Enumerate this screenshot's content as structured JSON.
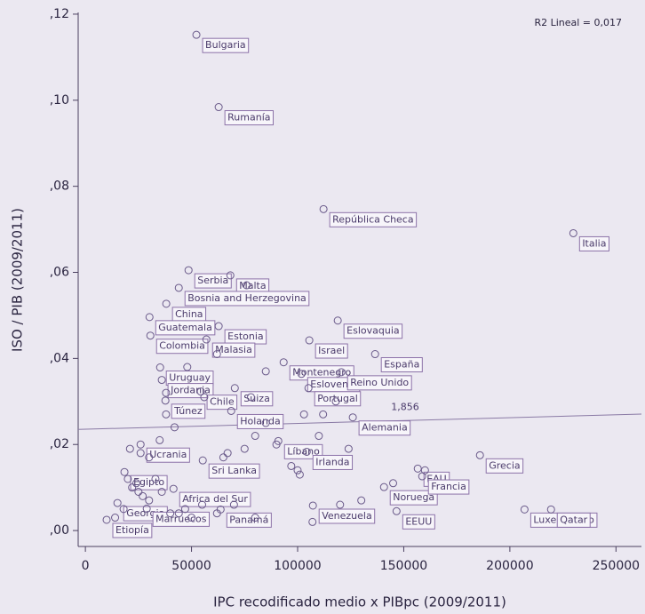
{
  "chart_data": {
    "type": "scatter",
    "annotation": "R2 Lineal = 0,017",
    "fit_label": "1,856",
    "xlabel": "IPC recodificado medio x PIBpc (2009/2011)",
    "ylabel": "ISO / PIB (2009/2011)",
    "xlim": [
      -3400,
      262000
    ],
    "ylim": [
      -0.0037,
      0.1204
    ],
    "xticks": [
      0,
      50000,
      100000,
      150000,
      200000,
      250000
    ],
    "yticks": [
      {
        "value": 0,
        "label": ",00"
      },
      {
        "value": 0.02,
        "label": ",02"
      },
      {
        "value": 0.04,
        "label": ",04"
      },
      {
        "value": 0.06,
        "label": ",06"
      },
      {
        "value": 0.08,
        "label": ",08"
      },
      {
        "value": 0.1,
        "label": ",10"
      },
      {
        "value": 0.12,
        "label": ",12"
      }
    ],
    "color": "#6a5a8a",
    "labels": [
      "Bulgaria",
      "Rumanía",
      "República Checa",
      "Italia",
      "Serbia",
      "Malta",
      "Bosnia and Herzegovina",
      "China",
      "Eslovaquia",
      "Israel",
      "Guatemala",
      "Estonia",
      "Colombia",
      "Malasia",
      "España",
      "Montenegro",
      "Eslovenia",
      "Uruguay",
      "Jordania",
      "Chile",
      "Suiza",
      "Portugal",
      "Reino Unido",
      "Túnez",
      "Holanda",
      "Alemania",
      "EAU",
      "Ucrania",
      "Sri Lanka",
      "Líbano",
      "Irlanda",
      "Grecia",
      "Egipto",
      "Noruega",
      "Africa del Sur",
      "Francia",
      "Georgia",
      "EEUU",
      "Luxemburgo",
      "Qatar",
      "Venezuela",
      "Marruecos",
      "Panamá",
      "Etiopía",
      null,
      null,
      null,
      null,
      null,
      null,
      null,
      null,
      null,
      null,
      null,
      null,
      null,
      null,
      null,
      null,
      null,
      null,
      null,
      null,
      null,
      null,
      null,
      null,
      null,
      null,
      null,
      null,
      null,
      null,
      null,
      null,
      null,
      null,
      null,
      null,
      null,
      null,
      null,
      null,
      null,
      null,
      null,
      null,
      null,
      null,
      null,
      null,
      null,
      null
    ],
    "x": [
      52300,
      62800,
      112200,
      229900,
      48600,
      68300,
      44000,
      38100,
      118900,
      105500,
      30200,
      62800,
      30600,
      57000,
      136500,
      93400,
      101800,
      35200,
      36000,
      54400,
      70400,
      105100,
      120600,
      37700,
      68700,
      126000,
      156600,
      26000,
      55300,
      90900,
      104300,
      185900,
      18400,
      140700,
      41500,
      158700,
      15100,
      146600,
      206900,
      219400,
      107200,
      28900,
      63700,
      10000,
      20000,
      22000,
      24000,
      25000,
      27000,
      30000,
      33000,
      36000,
      40000,
      44000,
      47000,
      50000,
      55000,
      62000,
      70000,
      80000,
      21000,
      26000,
      30000,
      35000,
      42000,
      38000,
      65000,
      67000,
      75000,
      80000,
      85000,
      90000,
      97000,
      100000,
      101000,
      103000,
      110000,
      118000,
      124000,
      130000,
      145000,
      160000,
      38000,
      48000,
      56000,
      62000,
      78000,
      85000,
      76000,
      112000,
      18000,
      14000,
      120000,
      107000
    ],
    "values": [
      0.1152,
      0.0984,
      0.0747,
      0.0691,
      0.0605,
      0.0593,
      0.0564,
      0.0527,
      0.0488,
      0.0442,
      0.0496,
      0.0475,
      0.0453,
      0.0444,
      0.041,
      0.0391,
      0.0364,
      0.0379,
      0.035,
      0.0323,
      0.0331,
      0.0331,
      0.0368,
      0.0302,
      0.0278,
      0.0263,
      0.0144,
      0.02,
      0.0163,
      0.0208,
      0.0183,
      0.0175,
      0.0136,
      0.0101,
      0.0097,
      0.0126,
      0.0064,
      0.0045,
      0.0049,
      0.0049,
      0.0058,
      0.0051,
      0.0049,
      0.0025,
      0.012,
      0.01,
      0.011,
      0.009,
      0.008,
      0.007,
      0.012,
      0.009,
      0.004,
      0.004,
      0.005,
      0.003,
      0.006,
      0.004,
      0.006,
      0.003,
      0.019,
      0.018,
      0.017,
      0.021,
      0.024,
      0.027,
      0.017,
      0.018,
      0.019,
      0.022,
      0.025,
      0.02,
      0.015,
      0.014,
      0.013,
      0.027,
      0.022,
      0.03,
      0.019,
      0.007,
      0.011,
      0.014,
      0.032,
      0.038,
      0.031,
      0.041,
      0.031,
      0.037,
      0.057,
      0.027,
      0.005,
      0.003,
      0.006,
      0.002
    ]
  }
}
